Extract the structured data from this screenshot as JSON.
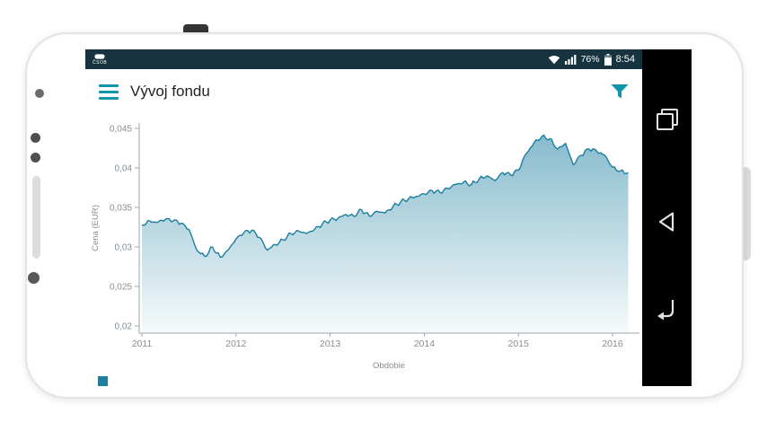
{
  "statusbar": {
    "carrier": "ČSOB",
    "battery_percent": "76%",
    "time": "8:54",
    "bg": "#17333f",
    "icons": [
      "wifi-icon",
      "signal-icon",
      "battery-icon"
    ]
  },
  "toolbar": {
    "title": "Vývoj fondu",
    "accent": "#0f96ac",
    "icons": [
      "menu-icon",
      "filter-icon"
    ]
  },
  "navbar": {
    "icons": [
      "recents-icon",
      "back-icon",
      "return-icon"
    ]
  },
  "chart_data": {
    "type": "area",
    "title": "",
    "xlabel": "Obdobie",
    "ylabel": "Cena (EUR)",
    "line_color": "#1b7fa0",
    "grid": false,
    "legend_position": "bottom-left",
    "xlim": [
      2011,
      2016.28
    ],
    "ylim": [
      0.0191,
      0.0462
    ],
    "x_ticks": {
      "values": [
        2011,
        2012,
        2013,
        2014,
        2015,
        2016
      ],
      "labels": [
        "2011",
        "2012",
        "2013",
        "2014",
        "2015",
        "2016"
      ]
    },
    "y_ticks": {
      "values": [
        0.02,
        0.025,
        0.03,
        0.035,
        0.04,
        0.045
      ],
      "labels": [
        "0,02",
        "0,025",
        "0,03",
        "0,035",
        "0,04",
        "0,045"
      ]
    },
    "x": [
      2011.0,
      2011.083,
      2011.167,
      2011.25,
      2011.333,
      2011.417,
      2011.5,
      2011.583,
      2011.667,
      2011.75,
      2011.833,
      2011.917,
      2012.0,
      2012.083,
      2012.167,
      2012.25,
      2012.333,
      2012.417,
      2012.5,
      2012.583,
      2012.667,
      2012.75,
      2012.833,
      2012.917,
      2013.0,
      2013.083,
      2013.167,
      2013.25,
      2013.333,
      2013.417,
      2013.5,
      2013.583,
      2013.667,
      2013.75,
      2013.833,
      2013.917,
      2014.0,
      2014.083,
      2014.167,
      2014.25,
      2014.333,
      2014.417,
      2014.5,
      2014.583,
      2014.667,
      2014.75,
      2014.833,
      2014.917,
      2015.0,
      2015.083,
      2015.167,
      2015.25,
      2015.333,
      2015.417,
      2015.5,
      2015.583,
      2015.667,
      2015.75,
      2015.833,
      2015.917,
      2016.0,
      2016.083,
      2016.167
    ],
    "y": [
      0.0328,
      0.0333,
      0.0331,
      0.0335,
      0.0333,
      0.033,
      0.0322,
      0.0296,
      0.0288,
      0.03,
      0.0287,
      0.0296,
      0.031,
      0.0318,
      0.0321,
      0.0312,
      0.0296,
      0.0303,
      0.0309,
      0.0317,
      0.032,
      0.0317,
      0.0322,
      0.0329,
      0.0334,
      0.0336,
      0.0341,
      0.0339,
      0.0347,
      0.0339,
      0.0345,
      0.0343,
      0.0351,
      0.0357,
      0.0361,
      0.0364,
      0.0367,
      0.0371,
      0.0369,
      0.0374,
      0.0379,
      0.0382,
      0.0379,
      0.0386,
      0.039,
      0.0384,
      0.0394,
      0.0391,
      0.0397,
      0.0418,
      0.0432,
      0.044,
      0.0437,
      0.0424,
      0.0431,
      0.0404,
      0.0416,
      0.0424,
      0.0421,
      0.0416,
      0.0401,
      0.0396,
      0.0394
    ],
    "legend": [
      {
        "color": "#1b7fa0",
        "label": ""
      }
    ]
  }
}
